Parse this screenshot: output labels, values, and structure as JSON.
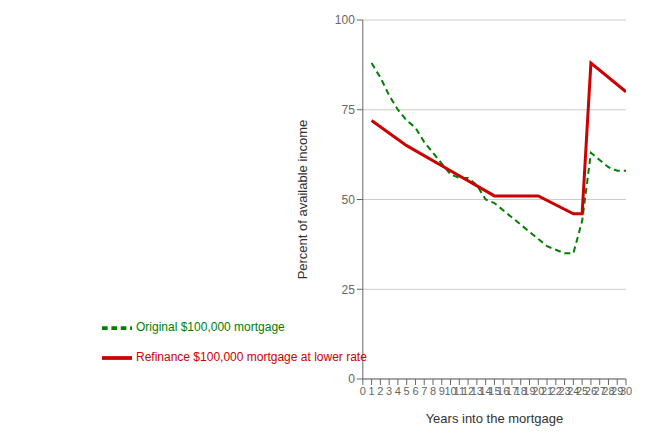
{
  "chart_data": {
    "type": "line",
    "xlabel": "Years into the mortgage",
    "ylabel": "Percent of available income",
    "xlim": [
      0,
      30
    ],
    "ylim": [
      0,
      100
    ],
    "xticks": [
      0,
      1,
      2,
      3,
      4,
      5,
      6,
      7,
      8,
      9,
      10,
      11,
      12,
      13,
      14,
      15,
      16,
      17,
      18,
      19,
      20,
      21,
      22,
      23,
      24,
      25,
      26,
      27,
      28,
      29,
      30
    ],
    "yticks": [
      0,
      25,
      50,
      75,
      100
    ],
    "grid": "y",
    "legend": "lower left",
    "series": [
      {
        "name": "Original $100,000 mortgage",
        "color": "#008000",
        "line_style": "dashed",
        "x": [
          1,
          2,
          3,
          4,
          5,
          6,
          7,
          8,
          9,
          10,
          11,
          12,
          13,
          14,
          15,
          16,
          17,
          18,
          19,
          20,
          21,
          22,
          23,
          24,
          25,
          26,
          27,
          28,
          29,
          30
        ],
        "values": [
          88,
          84,
          79,
          75,
          72,
          70,
          66,
          63,
          60,
          57,
          56,
          56,
          54,
          50,
          49,
          47,
          45,
          43,
          41,
          39,
          37,
          36,
          35,
          35,
          44,
          63,
          61,
          59,
          58,
          58
        ]
      },
      {
        "name": "Refinance $100,000 mortgage at lower rate",
        "color": "#cc0000",
        "line_style": "solid",
        "x": [
          1,
          5,
          10,
          15,
          20,
          24,
          25,
          26,
          30
        ],
        "values": [
          72,
          65,
          58,
          51,
          51,
          46,
          46,
          88,
          80
        ]
      }
    ]
  }
}
